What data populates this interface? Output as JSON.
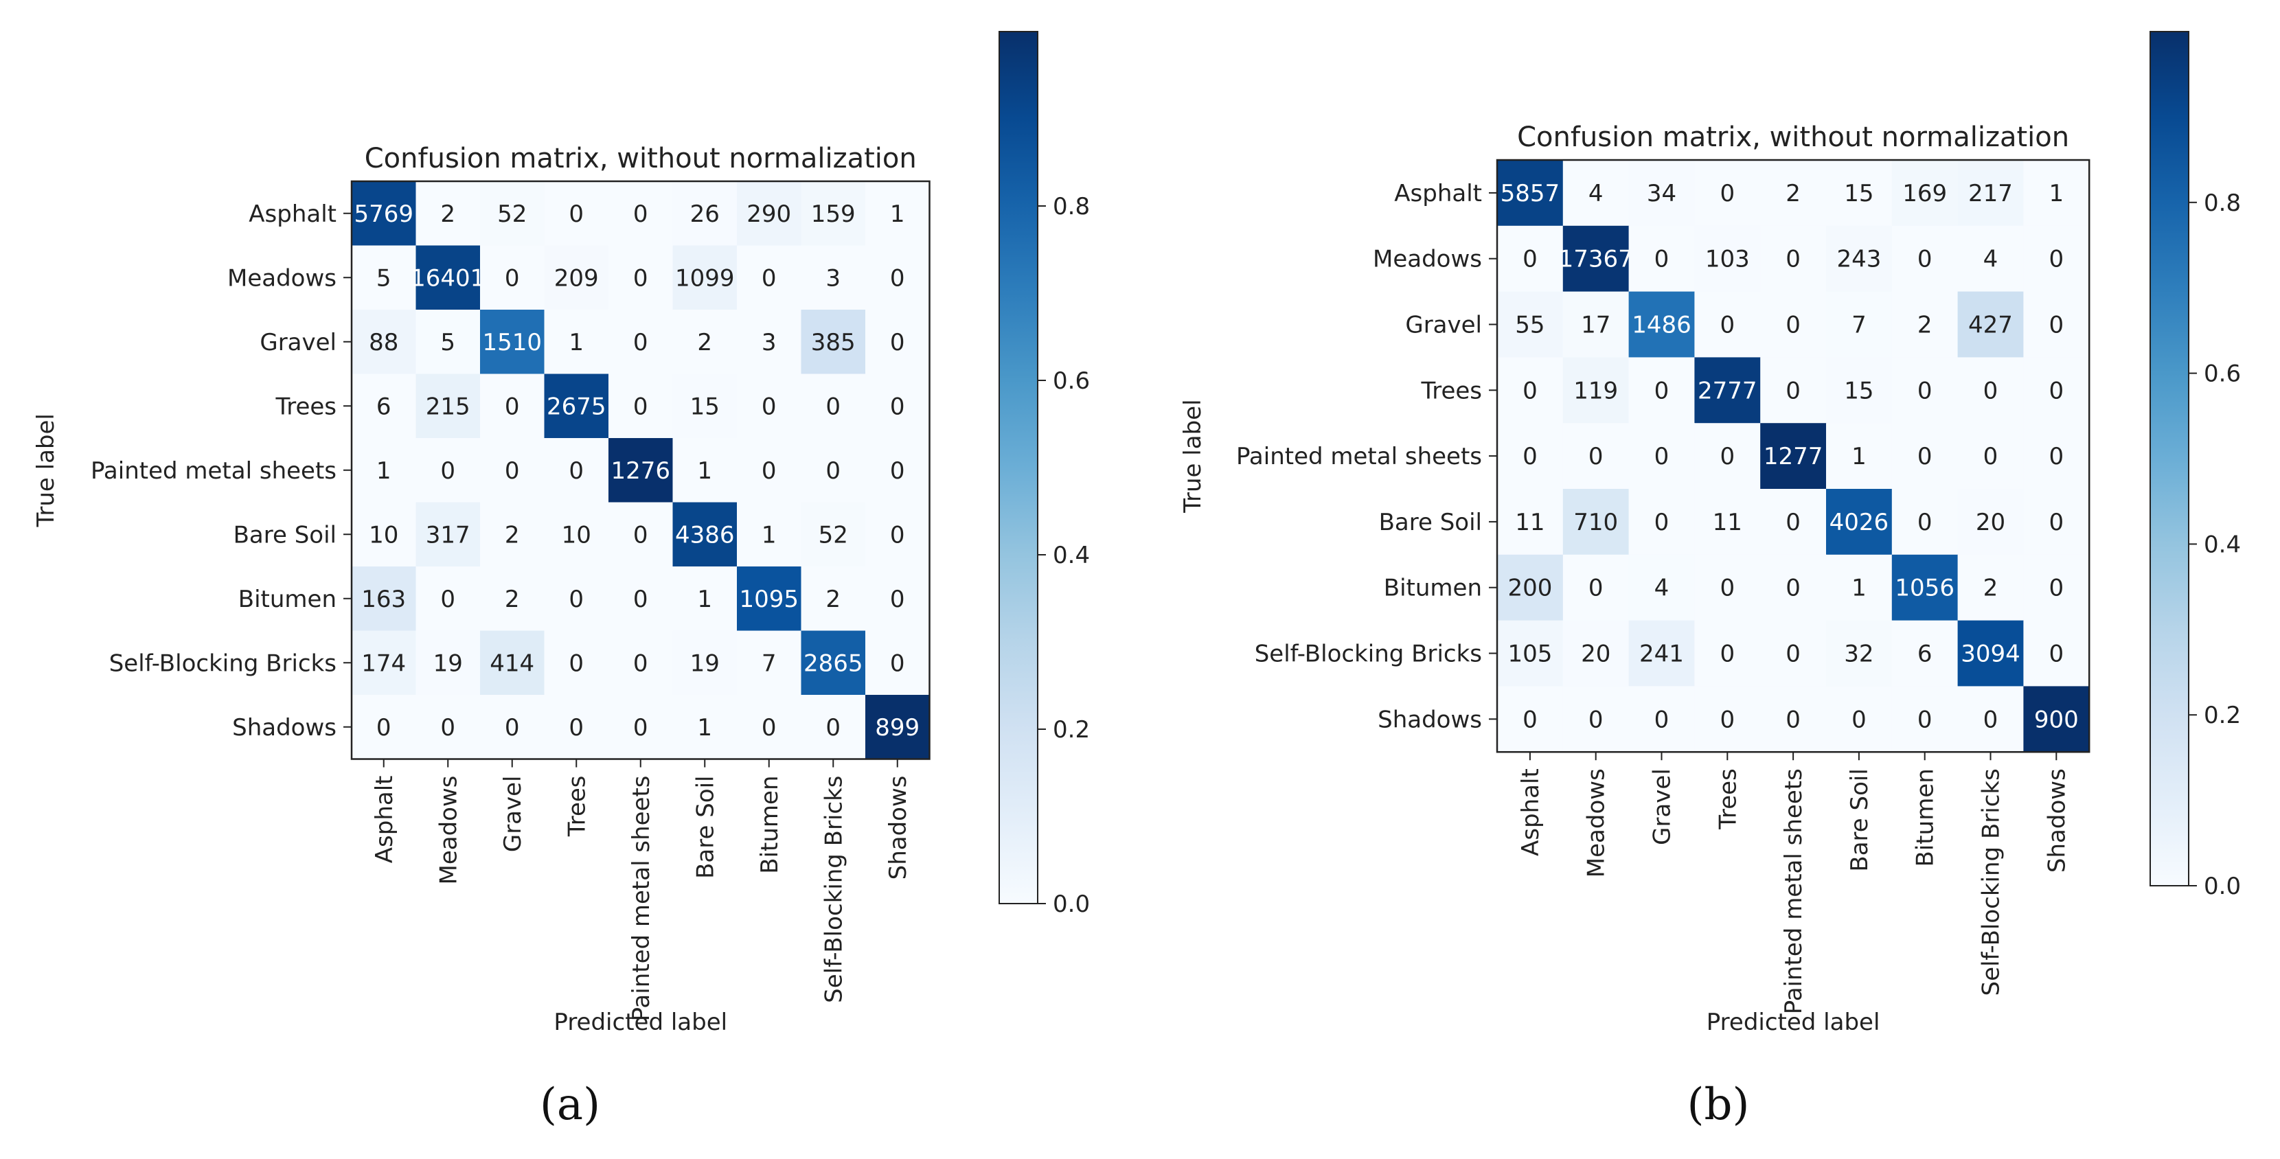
{
  "colors": {
    "cmap_low": "#f7fbff",
    "cmap_high": "#08306b",
    "text_dark": "#222222",
    "text_light": "#ffffff"
  },
  "chart_data": [
    {
      "type": "heatmap",
      "panel_label": "(a)",
      "title": "Confusion matrix, without normalization",
      "xlabel": "Predicted label",
      "ylabel": "True label",
      "row_labels": [
        "Asphalt",
        "Meadows",
        "Gravel",
        "Trees",
        "Painted metal sheets",
        "Bare Soil",
        "Bitumen",
        "Self-Blocking Bricks",
        "Shadows"
      ],
      "col_labels": [
        "Asphalt",
        "Meadows",
        "Gravel",
        "Trees",
        "Painted metal sheets",
        "Bare Soil",
        "Bitumen",
        "Self-Blocking Bricks",
        "Shadows"
      ],
      "matrix": [
        [
          5769,
          2,
          52,
          0,
          0,
          26,
          290,
          159,
          1
        ],
        [
          5,
          16401,
          0,
          209,
          0,
          1099,
          0,
          3,
          0
        ],
        [
          88,
          5,
          1510,
          1,
          0,
          2,
          3,
          385,
          0
        ],
        [
          6,
          215,
          0,
          2675,
          0,
          15,
          0,
          0,
          0
        ],
        [
          1,
          0,
          0,
          0,
          1276,
          1,
          0,
          0,
          0
        ],
        [
          10,
          317,
          2,
          10,
          0,
          4386,
          1,
          52,
          0
        ],
        [
          163,
          0,
          2,
          0,
          0,
          1,
          1095,
          2,
          0
        ],
        [
          174,
          19,
          414,
          0,
          0,
          19,
          7,
          2865,
          0
        ],
        [
          0,
          0,
          0,
          0,
          0,
          1,
          0,
          0,
          899
        ]
      ],
      "colorbar": {
        "range": [
          0.0,
          1.0
        ],
        "ticks": [
          "0.0",
          "0.2",
          "0.4",
          "0.6",
          "0.8"
        ],
        "tick_values": [
          0.0,
          0.2,
          0.4,
          0.6,
          0.8
        ]
      }
    },
    {
      "type": "heatmap",
      "panel_label": "(b)",
      "title": "Confusion matrix, without normalization",
      "xlabel": "Predicted label",
      "ylabel": "True label",
      "row_labels": [
        "Asphalt",
        "Meadows",
        "Gravel",
        "Trees",
        "Painted metal sheets",
        "Bare Soil",
        "Bitumen",
        "Self-Blocking Bricks",
        "Shadows"
      ],
      "col_labels": [
        "Asphalt",
        "Meadows",
        "Gravel",
        "Trees",
        "Painted metal sheets",
        "Bare Soil",
        "Bitumen",
        "Self-Blocking Bricks",
        "Shadows"
      ],
      "matrix": [
        [
          5857,
          4,
          34,
          0,
          2,
          15,
          169,
          217,
          1
        ],
        [
          0,
          17367,
          0,
          103,
          0,
          243,
          0,
          4,
          0
        ],
        [
          55,
          17,
          1486,
          0,
          0,
          7,
          2,
          427,
          0
        ],
        [
          0,
          119,
          0,
          2777,
          0,
          15,
          0,
          0,
          0
        ],
        [
          0,
          0,
          0,
          0,
          1277,
          1,
          0,
          0,
          0
        ],
        [
          11,
          710,
          0,
          11,
          0,
          4026,
          0,
          20,
          0
        ],
        [
          200,
          0,
          4,
          0,
          0,
          1,
          1056,
          2,
          0
        ],
        [
          105,
          20,
          241,
          0,
          0,
          32,
          6,
          3094,
          0
        ],
        [
          0,
          0,
          0,
          0,
          0,
          0,
          0,
          0,
          900
        ]
      ],
      "colorbar": {
        "range": [
          0.0,
          1.0
        ],
        "ticks": [
          "0.0",
          "0.2",
          "0.4",
          "0.6",
          "0.8"
        ],
        "tick_values": [
          0.0,
          0.2,
          0.4,
          0.6,
          0.8
        ]
      }
    }
  ]
}
